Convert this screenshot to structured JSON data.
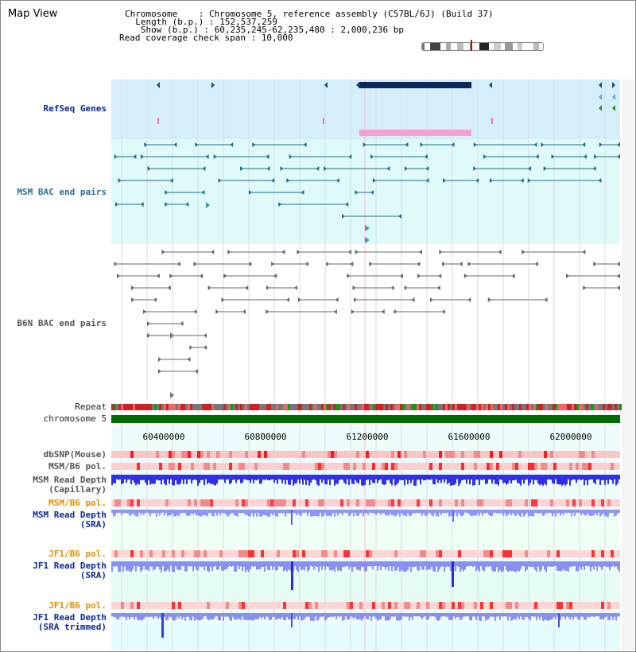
{
  "view_title": "Map View",
  "info": {
    "chromosome_label": "Chromosome    : Chromosome 5, reference assembly (C57BL/6J) (Build 37)",
    "length_label": "  Length (b.p.) : 152,537,259",
    "show_label": "   Show (b.p.) : 60,235,245-62,235,480 : 2,000,236 bp",
    "coverage_label": "Read coverage check span : 10,000"
  },
  "tracks": {
    "refseq": "RefSeq Genes",
    "msm_bac": "MSM BAC end pairs",
    "b6n_bac": "B6N BAC end pairs",
    "repeat": "Repeat",
    "chromosome": "chromosome 5",
    "dbsnp": "dbSNP(Mouse)",
    "msm_b6_pol_1": "MSM/B6 pol.",
    "msm_read_depth_cap": "MSM Read Depth\n(Capillary)",
    "msm_b6_pol_2": "MSM/B6 pol.",
    "msm_read_depth_sra": "MSM Read Depth\n(SRA)",
    "jf1_b6_pol_1": "JF1/B6 pol.",
    "jf1_read_depth_sra": "JF1 Read Depth\n(SRA)",
    "jf1_b6_pol_2": "JF1/B6 pol.",
    "jf1_read_depth_trim": "JF1 Read Depth\n(SRA trimmed)"
  },
  "axis_ticks": [
    "60400000",
    "60800000",
    "61200000",
    "61600000",
    "62000000"
  ],
  "colors": {
    "refseq_bg": "#d6eefa",
    "msm_bac_bg": "#e0fafa",
    "gene_dark": "#0a2858",
    "gene_pink": "#f4a0d0",
    "msm_line": "#1f6e8c",
    "b6n_line": "#666666",
    "chrom_green": "#006b00",
    "depth_blue": "#3a3ae0",
    "depth_light": "#8f95f4",
    "pol_red": "#ff0000"
  }
}
